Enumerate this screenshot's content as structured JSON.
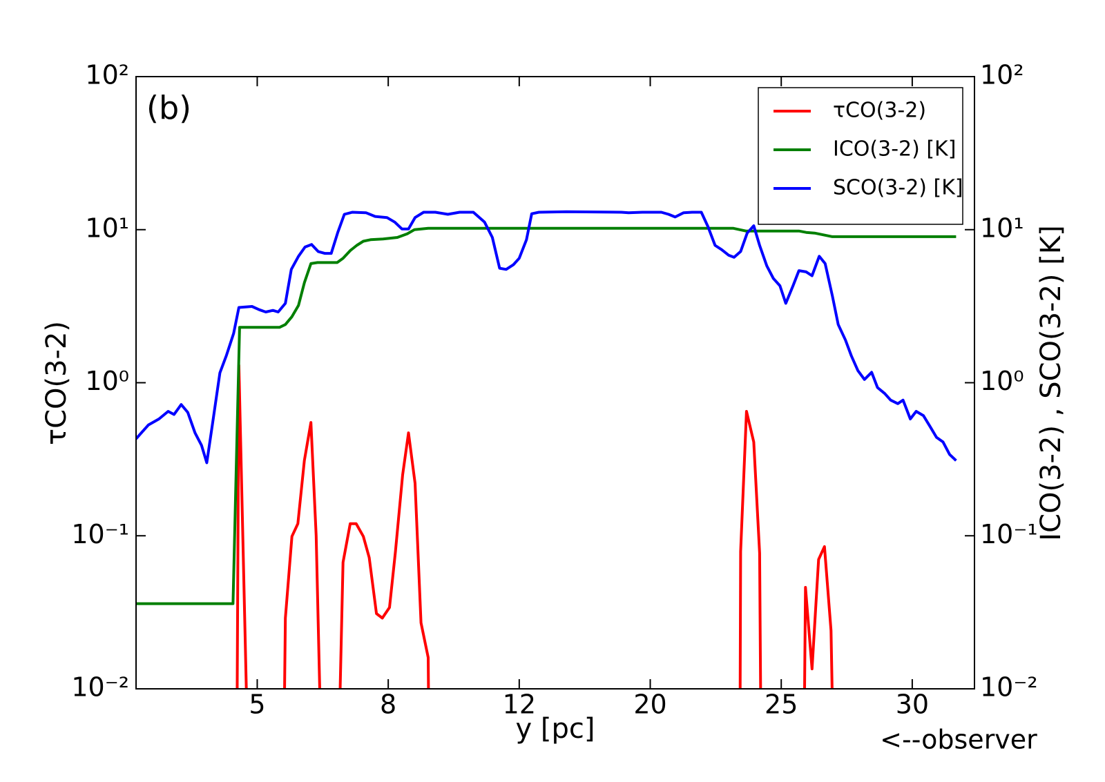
{
  "chart_data": {
    "type": "line",
    "annotation": "(b)",
    "xlabel": "y [pc]",
    "ylabel": "τCO(3-2)",
    "y2label": "ICO(3-2) , SCO(3-2) [K]",
    "note": "<--observer",
    "xlim": [
      0,
      128
    ],
    "xticks": [
      {
        "value": 18.5,
        "label": "5"
      },
      {
        "value": 38.5,
        "label": "8"
      },
      {
        "value": 58.5,
        "label": "12"
      },
      {
        "value": 78.5,
        "label": "20"
      },
      {
        "value": 98.5,
        "label": "25"
      },
      {
        "value": 118.5,
        "label": "30"
      }
    ],
    "ylim": [
      0.01,
      100
    ],
    "y2lim": [
      0.01,
      100
    ],
    "log_y": true,
    "yticks": [
      {
        "value": 0.01,
        "label": "10⁻²"
      },
      {
        "value": 0.1,
        "label": "10⁻¹"
      },
      {
        "value": 1,
        "label": "10⁰"
      },
      {
        "value": 10,
        "label": "10¹"
      },
      {
        "value": 100,
        "label": "10²"
      }
    ],
    "y2ticks": [
      {
        "value": 0.01,
        "label": "10⁻²"
      },
      {
        "value": 0.1,
        "label": "10⁻¹"
      },
      {
        "value": 1,
        "label": "10⁰"
      },
      {
        "value": 10,
        "label": "10¹"
      },
      {
        "value": 100,
        "label": "10²"
      }
    ],
    "legend": "upper right",
    "series": [
      {
        "name": "τCO(3-2)",
        "color": "#ff0000",
        "axis": "y",
        "x": [
          15.4,
          15.7,
          17.0,
          null,
          22.6,
          22.8,
          23.8,
          24.7,
          25.7,
          26.7,
          27.5,
          28.2,
          null,
          31.0,
          31.6,
          32.7,
          33.6,
          34.7,
          35.6,
          36.7,
          37.6,
          38.7,
          39.6,
          40.7,
          41.6,
          42.6,
          43.5,
          44.6,
          44.7,
          null,
          92.2,
          92.3,
          93.2,
          94.3,
          95.2,
          95.4,
          null,
          102.0,
          102.2,
          103.2,
          104.2,
          105.1,
          106.1,
          106.4
        ],
        "values": [
          0.005,
          1.3,
          0.005,
          null,
          0.005,
          0.029,
          0.099,
          0.12,
          0.31,
          0.55,
          0.1,
          0.005,
          null,
          0.005,
          0.067,
          0.12,
          0.12,
          0.099,
          0.072,
          0.031,
          0.029,
          0.034,
          0.079,
          0.25,
          0.47,
          0.22,
          0.027,
          0.016,
          0.005,
          null,
          0.005,
          0.079,
          0.65,
          0.41,
          0.077,
          0.005,
          null,
          0.005,
          0.046,
          0.0135,
          0.07,
          0.085,
          0.024,
          0.005
        ]
      },
      {
        "name": "ICO(3-2) [K]",
        "color": "#007f00",
        "axis": "y2",
        "x": [
          0,
          14.8,
          15.8,
          17.7,
          21.9,
          22.8,
          23.8,
          24.8,
          25.7,
          26.7,
          27.7,
          30.7,
          31.6,
          32.7,
          33.7,
          34.7,
          35.8,
          37.7,
          39.9,
          41.4,
          42.5,
          44.6,
          91.2,
          93.1,
          95.2,
          101.2,
          102.3,
          103.6,
          105.2,
          106.3,
          125.2
        ],
        "values": [
          0.036,
          0.036,
          2.3,
          2.3,
          2.3,
          2.4,
          2.7,
          3.2,
          4.5,
          6.0,
          6.1,
          6.1,
          6.5,
          7.3,
          7.9,
          8.4,
          8.6,
          8.7,
          8.9,
          9.4,
          10.0,
          10.2,
          10.2,
          9.8,
          9.8,
          9.8,
          9.6,
          9.5,
          9.2,
          9.0,
          9.0
        ]
      },
      {
        "name": "SCO(3-2) [K]",
        "color": "#0000ff",
        "axis": "y2",
        "x": [
          0,
          0.8,
          1.9,
          3.5,
          4.9,
          5.8,
          6.9,
          7.9,
          9.0,
          10.0,
          10.8,
          11.7,
          12.8,
          13.8,
          14.9,
          15.7,
          17.7,
          18.8,
          19.8,
          20.9,
          21.7,
          22.8,
          23.7,
          24.8,
          25.8,
          26.8,
          27.8,
          28.8,
          29.8,
          30.8,
          31.8,
          33.0,
          35.1,
          36.5,
          38.3,
          39.5,
          40.6,
          41.6,
          42.6,
          43.9,
          45.7,
          47.6,
          49.4,
          51.5,
          53.2,
          54.4,
          55.5,
          56.5,
          57.6,
          58.5,
          59.6,
          60.4,
          61.5,
          65.7,
          74.1,
          75.2,
          77.3,
          80.2,
          81.3,
          82.3,
          83.6,
          84.9,
          86.3,
          87.3,
          88.4,
          89.4,
          90.5,
          91.3,
          92.3,
          93.3,
          94.3,
          95.2,
          96.3,
          97.3,
          98.3,
          99.2,
          100.3,
          101.2,
          102.3,
          103.2,
          104.3,
          105.2,
          106.3,
          107.2,
          108.3,
          109.2,
          110.2,
          111.2,
          112.3,
          113.2,
          114.3,
          115.2,
          116.3,
          117.1,
          118.2,
          119.1,
          120.2,
          121.3,
          122.2,
          123.2,
          124.2,
          125.2
        ],
        "values": [
          0.43,
          0.47,
          0.53,
          0.58,
          0.65,
          0.62,
          0.72,
          0.64,
          0.47,
          0.39,
          0.3,
          0.55,
          1.16,
          1.51,
          2.1,
          3.1,
          3.15,
          3.0,
          2.9,
          2.97,
          2.9,
          3.3,
          5.5,
          6.7,
          7.7,
          8.0,
          7.2,
          7.0,
          7.0,
          9.6,
          12.6,
          13.0,
          12.9,
          12.2,
          12.0,
          11.2,
          10.1,
          10.1,
          12.0,
          13.0,
          13.0,
          12.6,
          13.0,
          13.0,
          11.2,
          8.9,
          5.6,
          5.5,
          5.9,
          6.5,
          8.6,
          12.7,
          13.0,
          13.1,
          13.0,
          12.9,
          13.0,
          13.0,
          12.6,
          12.1,
          12.9,
          13.0,
          13.0,
          10.5,
          7.9,
          7.4,
          6.8,
          6.6,
          7.2,
          9.5,
          10.6,
          7.9,
          5.8,
          4.8,
          4.3,
          3.3,
          4.3,
          5.4,
          5.3,
          5.0,
          6.7,
          6.0,
          3.7,
          2.4,
          1.9,
          1.5,
          1.2,
          1.05,
          1.17,
          0.93,
          0.85,
          0.77,
          0.73,
          0.77,
          0.58,
          0.65,
          0.61,
          0.51,
          0.44,
          0.41,
          0.34,
          0.31
        ]
      }
    ]
  }
}
